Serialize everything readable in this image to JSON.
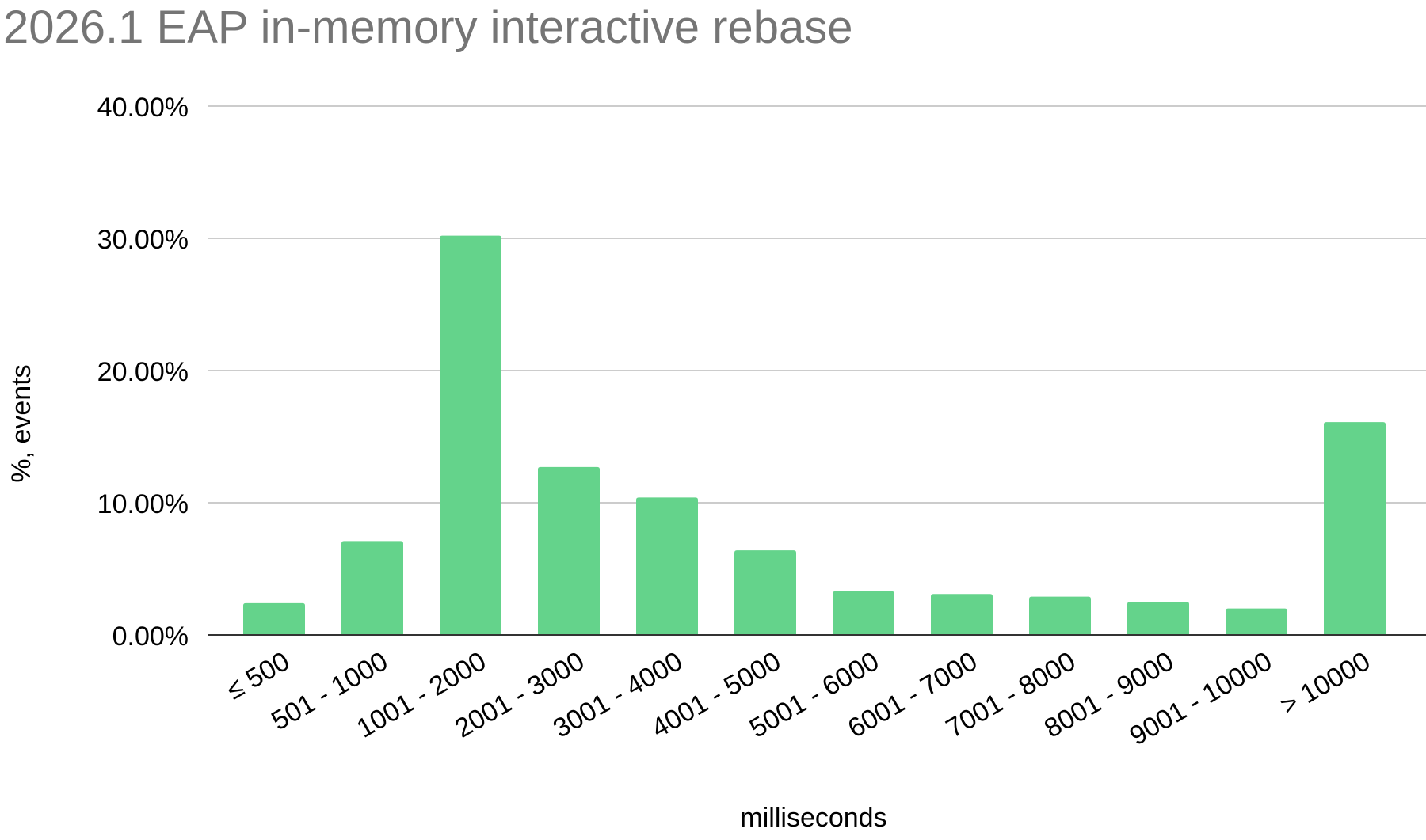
{
  "chart_data": {
    "type": "bar",
    "title": "2026.1 EAP in-memory interactive rebase",
    "xlabel": "milliseconds",
    "ylabel": "%, events",
    "categories": [
      "≤ 500",
      "501 - 1000",
      "1001 - 2000",
      "2001 - 3000",
      "3001 - 4000",
      "4001 - 5000",
      "5001 - 6000",
      "6001 - 7000",
      "7001 - 8000",
      "8001 - 9000",
      "9001 - 10000",
      "> 10000"
    ],
    "values": [
      2.4,
      7.1,
      30.2,
      12.7,
      10.4,
      6.4,
      3.3,
      3.1,
      2.9,
      2.5,
      2.0,
      16.1
    ],
    "ylim": [
      0,
      40
    ],
    "yticks": [
      0,
      10,
      20,
      30,
      40
    ],
    "ytick_labels": [
      "0.00%",
      "10.00%",
      "20.00%",
      "30.00%",
      "40.00%"
    ],
    "grid": true,
    "legend": "none",
    "colors": {
      "bar": "#64d38b",
      "title": "#757575",
      "text": "#000000",
      "grid": "#cccccc",
      "axis": "#333333"
    }
  }
}
